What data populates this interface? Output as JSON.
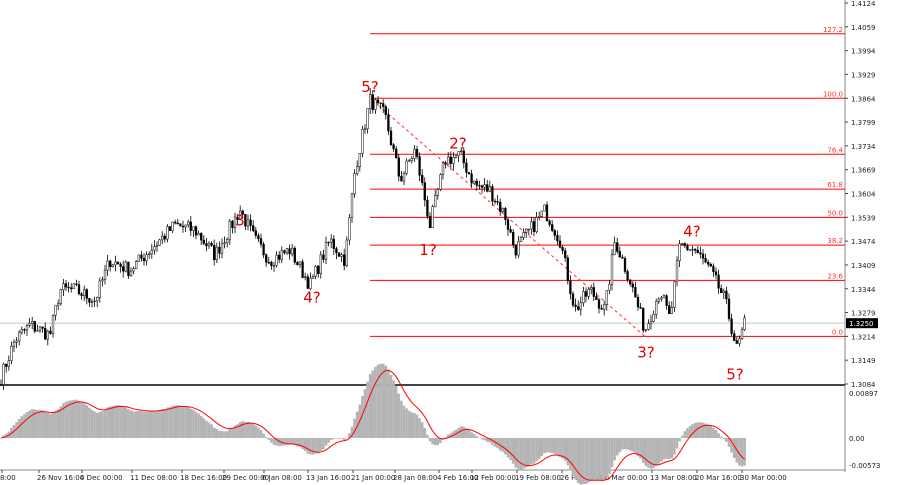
{
  "chart_data": {
    "type": "candlestick",
    "y_axis": {
      "ticks": [
        "1.4124",
        "1.4059",
        "1.3994",
        "1.3929",
        "1.3864",
        "1.3799",
        "1.3734",
        "1.3669",
        "1.3604",
        "1.3539",
        "1.3474",
        "1.3409",
        "1.3344",
        "1.3279",
        "1.3214",
        "1.3149",
        "1.3084"
      ],
      "range": [
        1.3084,
        1.4124
      ]
    },
    "current_price": "1.3250",
    "x_axis": {
      "ticks": [
        "8:00",
        "26 Nov 16:00",
        "4 Dec 00:00",
        "11 Dec 08:00",
        "18 Dec 16:00",
        "29 Dec 00:00",
        "6 Jan 08:00",
        "13 Jan 16:00",
        "21 Jan 00:00",
        "28 Jan 08:00",
        "4 Feb 16:00",
        "12 Feb 00:00",
        "19 Feb 08:00",
        "26 Feb 16:00",
        "6 Mar 00:00",
        "13 Mar 08:00",
        "20 Mar 16:00",
        "30 Mar 00:00"
      ]
    },
    "price_path": [
      1.3095,
      1.3204,
      1.3245,
      1.3218,
      1.3341,
      1.3341,
      1.3313,
      1.3422,
      1.3395,
      1.345,
      1.3518,
      1.3504,
      1.3436,
      1.3559,
      1.3477,
      1.3422,
      1.345,
      1.3354,
      1.3477,
      1.3422,
      1.3668,
      1.3859,
      1.3818,
      1.3641,
      1.3723,
      1.3518,
      1.3695,
      1.3709,
      1.3627,
      1.3613,
      1.3545,
      1.345,
      1.3504,
      1.3559,
      1.3477,
      1.3286,
      1.3341,
      1.3286,
      1.3477,
      1.3368,
      1.3231,
      1.3341,
      1.3259,
      1.3463,
      1.345,
      1.3395,
      1.3313,
      1.3177,
      1.325
    ],
    "fibonacci": {
      "high": 1.3864,
      "low": 1.3214,
      "levels": [
        {
          "label": "127.2",
          "price": 1.404
        },
        {
          "label": "100.0",
          "price": 1.3864
        },
        {
          "label": "76.4",
          "price": 1.3711
        },
        {
          "label": "61.8",
          "price": 1.3616
        },
        {
          "label": "50.0",
          "price": 1.3539
        },
        {
          "label": "38.2",
          "price": 1.3463
        },
        {
          "label": "23.6",
          "price": 1.3367
        },
        {
          "label": "0.0",
          "price": 1.3214
        }
      ]
    },
    "wave_labels": [
      {
        "text": "3",
        "price": 1.353
      },
      {
        "text": "4?",
        "price": 1.332
      },
      {
        "text": "5?",
        "price": 1.3895
      },
      {
        "text": "2?",
        "price": 1.374
      },
      {
        "text": "1?",
        "price": 1.345
      },
      {
        "text": "4?",
        "price": 1.35
      },
      {
        "text": "3?",
        "price": 1.317
      },
      {
        "text": "5?",
        "price": 1.311
      }
    ],
    "oscillator": {
      "ticks": [
        "0.00897",
        "0.00",
        "-0.00573"
      ],
      "range": [
        -0.00573,
        0.00897
      ]
    },
    "colors": {
      "fib": "#ff0000",
      "waves": "#e00000",
      "candles": "#000000",
      "histogram": "#b4b4b4",
      "signal": "#ff0000"
    }
  }
}
